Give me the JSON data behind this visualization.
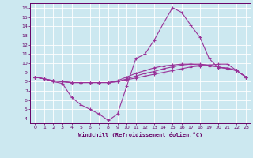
{
  "xlabel": "Windchill (Refroidissement éolien,°C)",
  "background_color": "#cce8f0",
  "grid_color": "#ffffff",
  "line_color": "#993399",
  "xlim": [
    -0.5,
    23.5
  ],
  "ylim": [
    3.5,
    16.5
  ],
  "xticks": [
    0,
    1,
    2,
    3,
    4,
    5,
    6,
    7,
    8,
    9,
    10,
    11,
    12,
    13,
    14,
    15,
    16,
    17,
    18,
    19,
    20,
    21,
    22,
    23
  ],
  "yticks": [
    4,
    5,
    6,
    7,
    8,
    9,
    10,
    11,
    12,
    13,
    14,
    15,
    16
  ],
  "lines": [
    {
      "x": [
        0,
        1,
        2,
        3,
        4,
        5,
        6,
        7,
        8,
        9,
        10,
        11,
        12,
        13,
        14,
        15,
        16,
        17,
        18,
        19,
        20,
        21,
        22,
        23
      ],
      "y": [
        8.5,
        8.3,
        8.0,
        7.8,
        6.3,
        5.5,
        5.0,
        4.5,
        3.8,
        4.5,
        7.5,
        10.5,
        11.0,
        12.5,
        14.3,
        16.0,
        15.5,
        14.1,
        12.8,
        10.5,
        9.5,
        9.5,
        9.2,
        8.5
      ]
    },
    {
      "x": [
        0,
        1,
        2,
        3,
        4,
        5,
        6,
        7,
        8,
        9,
        10,
        11,
        12,
        13,
        14,
        15,
        16,
        17,
        18,
        19,
        20,
        21,
        22,
        23
      ],
      "y": [
        8.5,
        8.3,
        8.1,
        8.0,
        7.9,
        7.9,
        7.9,
        7.9,
        7.9,
        8.0,
        8.2,
        8.4,
        8.6,
        8.8,
        9.0,
        9.2,
        9.4,
        9.6,
        9.7,
        9.8,
        9.9,
        9.9,
        9.2,
        8.5
      ]
    },
    {
      "x": [
        0,
        1,
        2,
        3,
        4,
        5,
        6,
        7,
        8,
        9,
        10,
        11,
        12,
        13,
        14,
        15,
        16,
        17,
        18,
        19,
        20,
        21,
        22,
        23
      ],
      "y": [
        8.5,
        8.3,
        8.1,
        8.0,
        7.9,
        7.9,
        7.9,
        7.9,
        7.9,
        8.0,
        8.3,
        8.6,
        8.9,
        9.1,
        9.4,
        9.6,
        9.8,
        9.9,
        9.9,
        9.8,
        9.6,
        9.4,
        9.2,
        8.5
      ]
    },
    {
      "x": [
        0,
        1,
        2,
        3,
        4,
        5,
        6,
        7,
        8,
        9,
        10,
        11,
        12,
        13,
        14,
        15,
        16,
        17,
        18,
        19,
        20,
        21,
        22,
        23
      ],
      "y": [
        8.5,
        8.3,
        8.1,
        8.0,
        7.9,
        7.9,
        7.9,
        7.9,
        7.9,
        8.1,
        8.5,
        8.9,
        9.2,
        9.5,
        9.7,
        9.8,
        9.9,
        9.9,
        9.8,
        9.7,
        9.6,
        9.4,
        9.2,
        8.5
      ]
    }
  ]
}
